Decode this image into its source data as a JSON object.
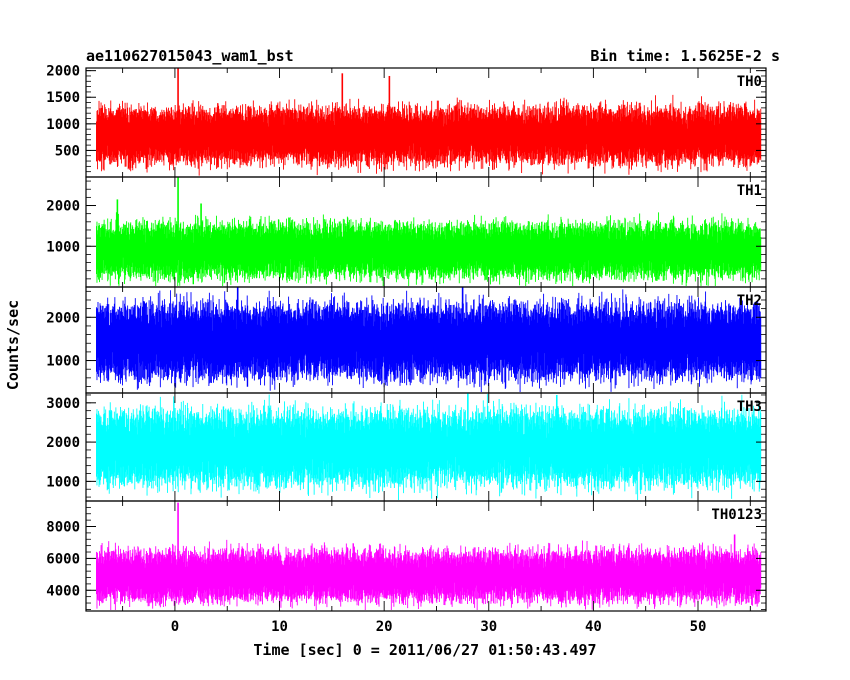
{
  "header": {
    "title": "ae110627015043_wam1_bst",
    "bin_time": "Bin time: 1.5625E-2 s"
  },
  "chart_data": {
    "type": "line",
    "ylabel": "Counts/sec",
    "xlabel": "Time [sec] 0 = 2011/06/27 01:50:43.497",
    "xlim": [
      -8.5,
      56.5
    ],
    "x_ticks": [
      0,
      10,
      20,
      30,
      40,
      50
    ],
    "x_tick_labels": [
      "0",
      "10",
      "20",
      "30",
      "40",
      "50"
    ],
    "data_x_range": [
      -7.5,
      56.0
    ],
    "bin_time_s": 0.015625,
    "panels": [
      {
        "label": "TH0",
        "color": "#ff0000",
        "ylim": [
          0,
          2050
        ],
        "yticks": [
          500,
          1000,
          1500,
          2000
        ],
        "ytick_labels": [
          "500",
          "1000",
          "1500",
          "2000"
        ],
        "mean": 780,
        "high": 1450,
        "low": 180,
        "spikes": [
          {
            "x": 0.3,
            "y": 2050
          },
          {
            "x": 16.0,
            "y": 1950
          },
          {
            "x": 20.5,
            "y": 1900
          }
        ]
      },
      {
        "label": "TH1",
        "color": "#00ff00",
        "ylim": [
          0,
          2700
        ],
        "yticks": [
          1000,
          2000
        ],
        "ytick_labels": [
          "1000",
          "2000"
        ],
        "mean": 900,
        "high": 1750,
        "low": 150,
        "spikes": [
          {
            "x": 0.3,
            "y": 2700
          },
          {
            "x": -5.5,
            "y": 2150
          },
          {
            "x": 2.5,
            "y": 2050
          }
        ]
      },
      {
        "label": "TH2",
        "color": "#0000ff",
        "ylim": [
          250,
          2700
        ],
        "yticks": [
          1000,
          2000
        ],
        "ytick_labels": [
          "1000",
          "2000"
        ],
        "mean": 1450,
        "high": 2500,
        "low": 450,
        "spikes": [
          {
            "x": 6.0,
            "y": 2700
          },
          {
            "x": 27.5,
            "y": 2700
          }
        ]
      },
      {
        "label": "TH3",
        "color": "#00ffff",
        "ylim": [
          500,
          3250
        ],
        "yticks": [
          1000,
          2000,
          3000
        ],
        "ytick_labels": [
          "1000",
          "2000",
          "3000"
        ],
        "mean": 1850,
        "high": 3050,
        "low": 800,
        "spikes": [
          {
            "x": 28.0,
            "y": 3250
          },
          {
            "x": 36.5,
            "y": 3200
          }
        ]
      },
      {
        "label": "TH0123",
        "color": "#ff00ff",
        "ylim": [
          2700,
          9600
        ],
        "yticks": [
          4000,
          6000,
          8000
        ],
        "ytick_labels": [
          "4000",
          "6000",
          "8000"
        ],
        "mean": 4900,
        "high": 6800,
        "low": 3000,
        "spikes": [
          {
            "x": 0.3,
            "y": 9500
          },
          {
            "x": 53.5,
            "y": 7500
          }
        ]
      }
    ]
  }
}
